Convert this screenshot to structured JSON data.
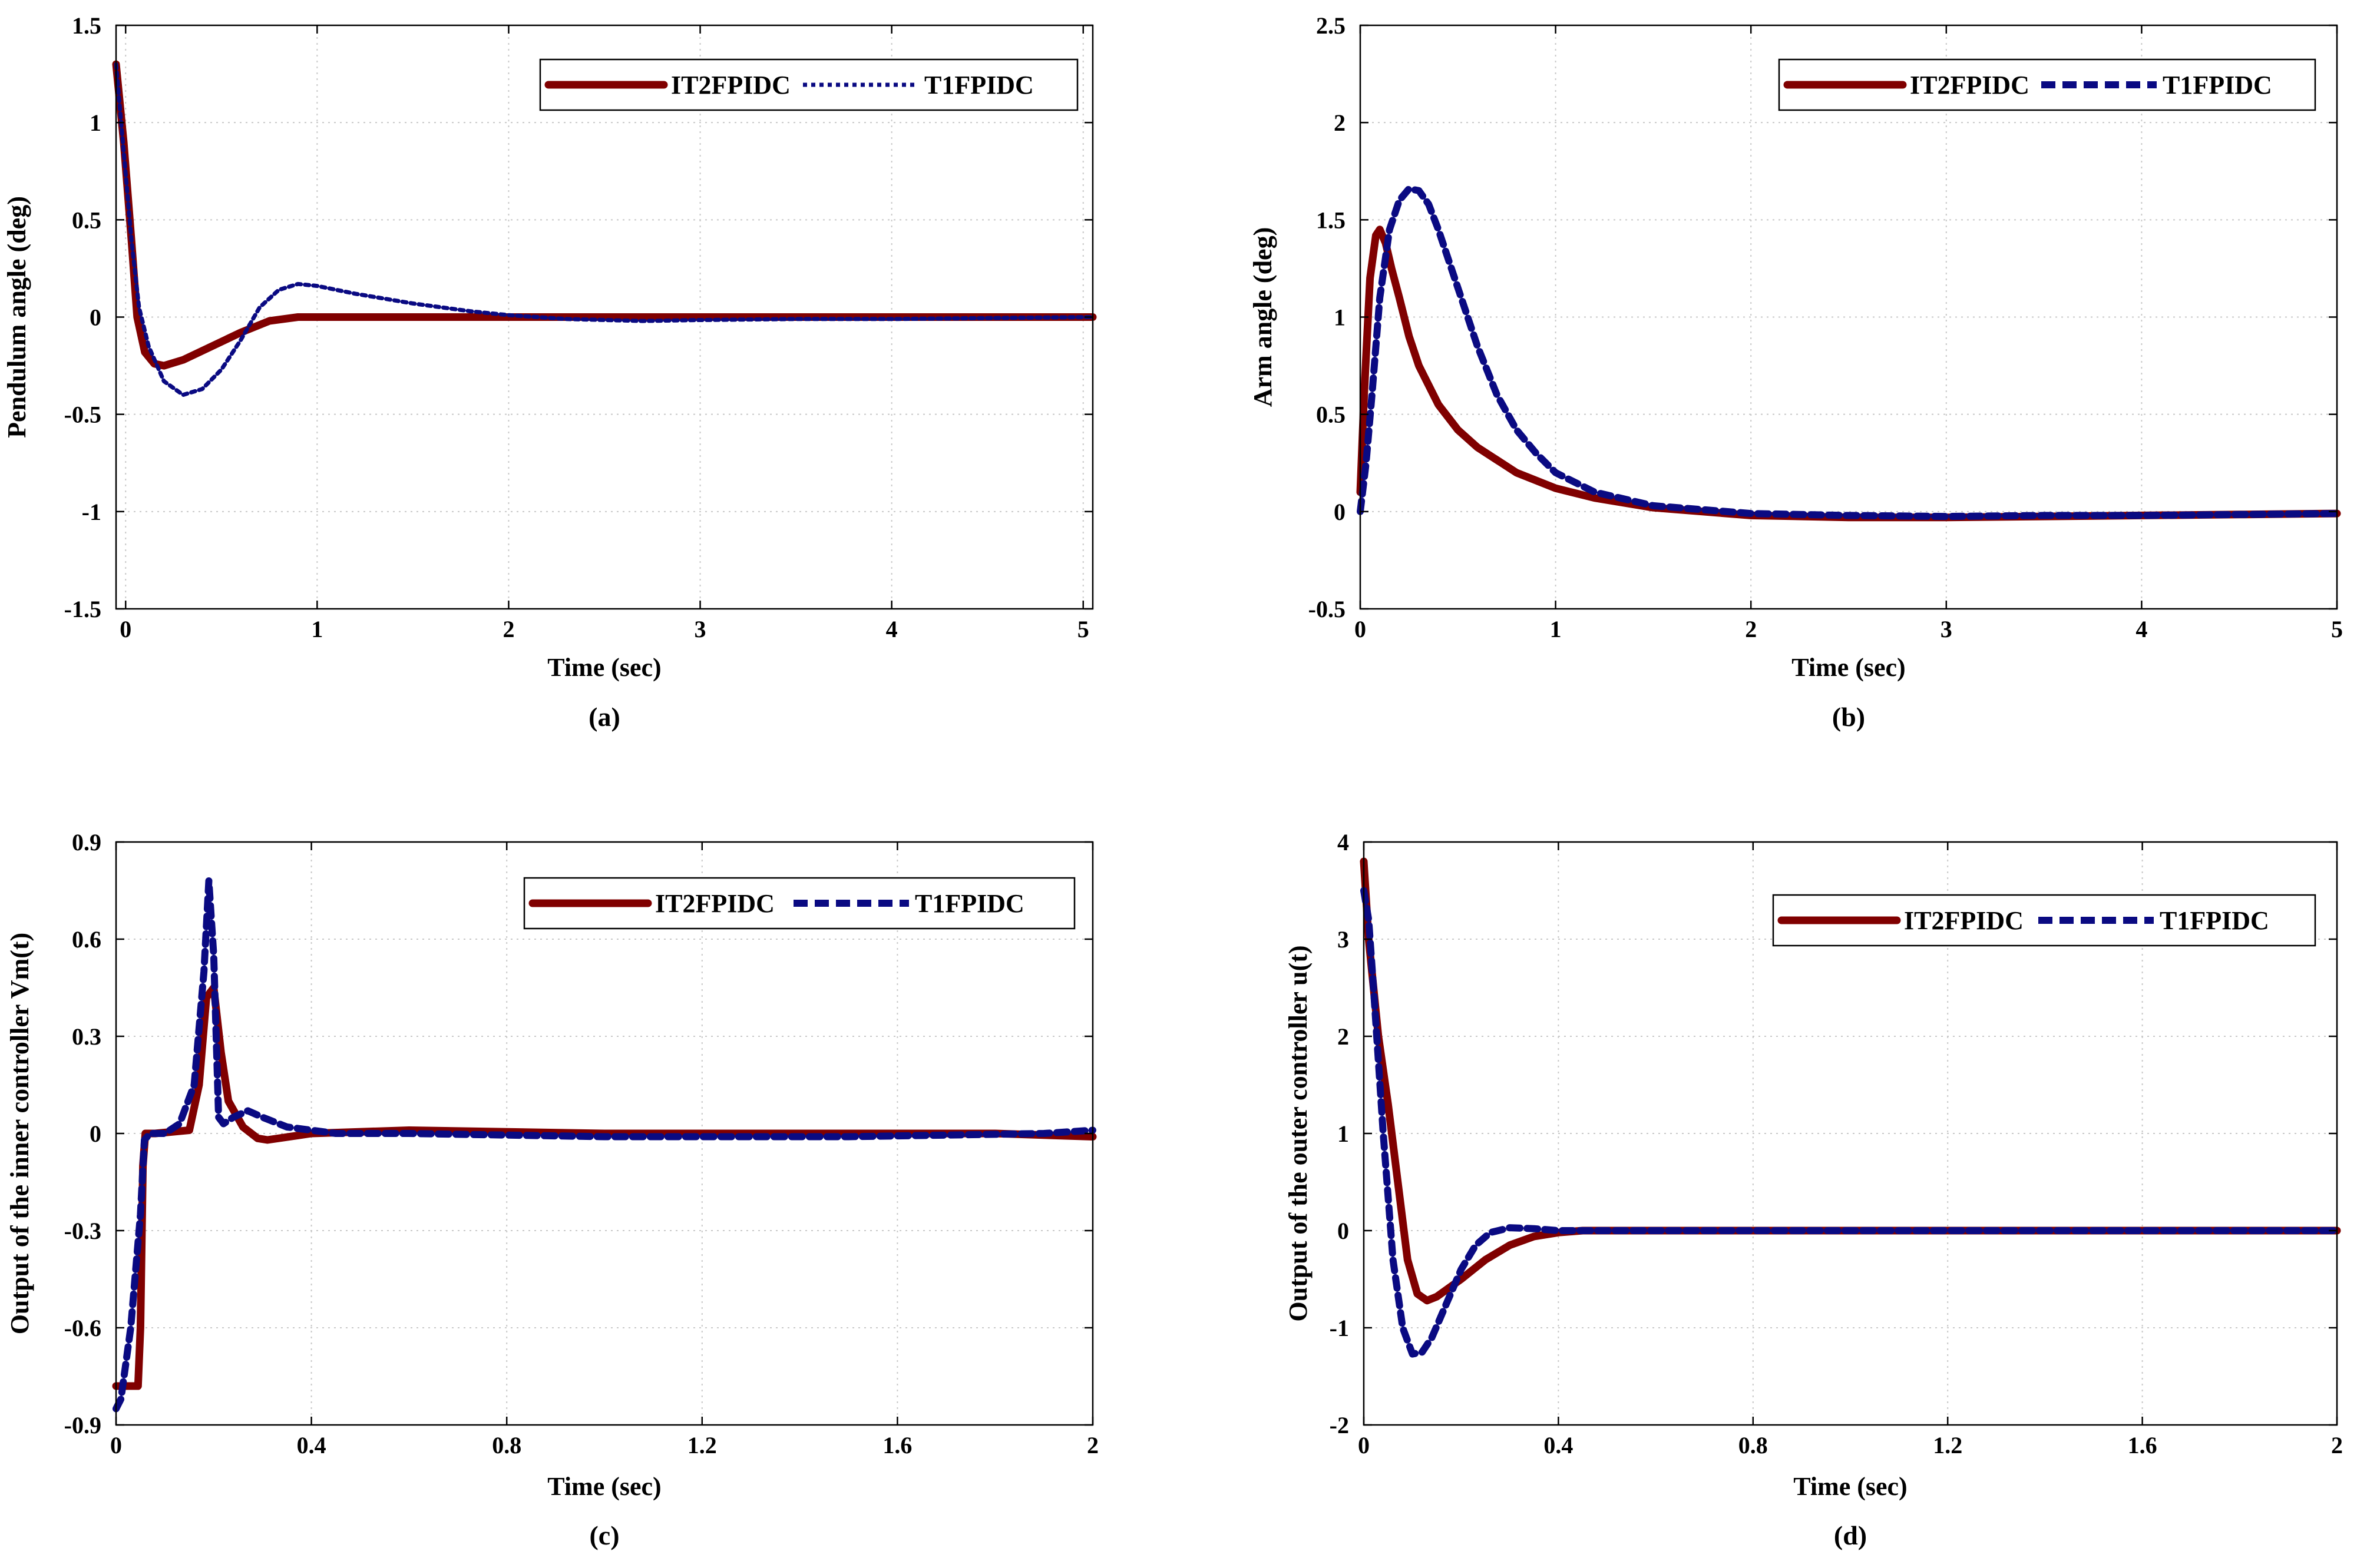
{
  "colors": {
    "it2": "#800000",
    "t1": "#0a0a82",
    "axis": "#000000",
    "grid": "#c8c8c8"
  },
  "chart_data": [
    {
      "id": "a",
      "type": "line",
      "panel_label": "(a)",
      "xlabel": "Time (sec)",
      "ylabel": "Pendulum angle (deg)",
      "xlim": [
        -0.05,
        5.05
      ],
      "ylim": [
        -1.5,
        1.5
      ],
      "xticks": [
        0,
        1,
        2,
        3,
        4,
        5
      ],
      "xtick_labels": [
        "0",
        "1",
        "2",
        "3",
        "4",
        "5"
      ],
      "yticks": [
        -1.5,
        -1,
        -0.5,
        0,
        0.5,
        1,
        1.5
      ],
      "ytick_labels": [
        "-1.5",
        "-1",
        "-0.5",
        "0",
        "0.5",
        "1",
        "1.5"
      ],
      "legend": {
        "position": "top-right",
        "entries": [
          "IT2FPIDC",
          "T1FPIDC"
        ],
        "t1_style": "dotted"
      },
      "series": [
        {
          "name": "IT2FPIDC",
          "style": "solid",
          "x": [
            -0.05,
            -0.01,
            0.03,
            0.06,
            0.1,
            0.15,
            0.2,
            0.3,
            0.45,
            0.6,
            0.75,
            0.9,
            1.0,
            1.5,
            2.0,
            3.0,
            4.0,
            5.05
          ],
          "y": [
            1.3,
            0.9,
            0.4,
            0.0,
            -0.18,
            -0.24,
            -0.25,
            -0.22,
            -0.15,
            -0.08,
            -0.02,
            0.0,
            0.0,
            0.0,
            0.0,
            0.0,
            0.0,
            0.0
          ]
        },
        {
          "name": "T1FPIDC",
          "style": "dotted",
          "x": [
            -0.05,
            -0.01,
            0.03,
            0.07,
            0.12,
            0.2,
            0.3,
            0.4,
            0.5,
            0.6,
            0.7,
            0.8,
            0.9,
            1.0,
            1.2,
            1.5,
            1.8,
            2.0,
            2.3,
            2.7,
            3.0,
            3.5,
            4.0,
            4.5,
            5.05
          ],
          "y": [
            1.3,
            0.85,
            0.4,
            0.05,
            -0.15,
            -0.33,
            -0.4,
            -0.37,
            -0.27,
            -0.12,
            0.05,
            0.14,
            0.17,
            0.16,
            0.12,
            0.07,
            0.03,
            0.01,
            -0.01,
            -0.02,
            -0.015,
            -0.01,
            -0.01,
            -0.005,
            0.0
          ]
        }
      ]
    },
    {
      "id": "b",
      "type": "line",
      "panel_label": "(b)",
      "xlabel": "Time (sec)",
      "ylabel": "Arm angle (deg)",
      "xlim": [
        0,
        5
      ],
      "ylim": [
        -0.5,
        2.5
      ],
      "xticks": [
        0,
        1,
        2,
        3,
        4,
        5
      ],
      "xtick_labels": [
        "0",
        "1",
        "2",
        "3",
        "4",
        "5"
      ],
      "yticks": [
        -0.5,
        0,
        0.5,
        1,
        1.5,
        2,
        2.5
      ],
      "ytick_labels": [
        "-0.5",
        "0",
        "0.5",
        "1",
        "1.5",
        "2",
        "2.5"
      ],
      "legend": {
        "position": "top-right",
        "entries": [
          "IT2FPIDC",
          "T1FPIDC"
        ],
        "t1_style": "dashed"
      },
      "series": [
        {
          "name": "IT2FPIDC",
          "style": "solid",
          "x": [
            0.0,
            0.02,
            0.05,
            0.08,
            0.1,
            0.13,
            0.16,
            0.2,
            0.25,
            0.3,
            0.4,
            0.5,
            0.6,
            0.8,
            1.0,
            1.2,
            1.5,
            2.0,
            2.5,
            3.0,
            3.5,
            4.0,
            4.5,
            5.0
          ],
          "y": [
            0.1,
            0.6,
            1.2,
            1.42,
            1.45,
            1.38,
            1.25,
            1.1,
            0.9,
            0.75,
            0.55,
            0.42,
            0.33,
            0.2,
            0.12,
            0.07,
            0.02,
            -0.02,
            -0.03,
            -0.03,
            -0.025,
            -0.02,
            -0.015,
            -0.01
          ]
        },
        {
          "name": "T1FPIDC",
          "style": "dashed",
          "x": [
            0.0,
            0.03,
            0.06,
            0.1,
            0.15,
            0.2,
            0.25,
            0.3,
            0.35,
            0.4,
            0.5,
            0.6,
            0.7,
            0.8,
            0.9,
            1.0,
            1.2,
            1.5,
            2.0,
            2.5,
            3.0,
            3.5,
            4.0,
            4.5,
            5.0
          ],
          "y": [
            0.0,
            0.25,
            0.6,
            1.1,
            1.45,
            1.6,
            1.66,
            1.65,
            1.58,
            1.45,
            1.15,
            0.85,
            0.6,
            0.42,
            0.3,
            0.2,
            0.1,
            0.03,
            -0.01,
            -0.02,
            -0.025,
            -0.02,
            -0.02,
            -0.015,
            -0.01
          ]
        }
      ]
    },
    {
      "id": "c",
      "type": "line",
      "panel_label": "(c)",
      "xlabel": "Time (sec)",
      "ylabel": "Output of the inner controller Vm(t)",
      "xlim": [
        0,
        2
      ],
      "ylim": [
        -0.9,
        0.9
      ],
      "xticks": [
        0,
        0.4,
        0.8,
        1.2,
        1.6,
        2
      ],
      "xtick_labels": [
        "0",
        "0.4",
        "0.8",
        "1.2",
        "1.6",
        "2"
      ],
      "yticks": [
        -0.9,
        -0.6,
        -0.3,
        0,
        0.3,
        0.6,
        0.9
      ],
      "ytick_labels": [
        "-0.9",
        "-0.6",
        "-0.3",
        "0",
        "0.3",
        "0.6",
        "0.9"
      ],
      "legend": {
        "position": "top-right",
        "entries": [
          "IT2FPIDC",
          "T1FPIDC"
        ],
        "t1_style": "dashed"
      },
      "series": [
        {
          "name": "IT2FPIDC",
          "style": "solid",
          "x": [
            0.0,
            0.045,
            0.05,
            0.055,
            0.06,
            0.08,
            0.15,
            0.17,
            0.185,
            0.2,
            0.215,
            0.23,
            0.26,
            0.29,
            0.31,
            0.4,
            0.6,
            1.0,
            1.4,
            1.8,
            2.0
          ],
          "y": [
            -0.78,
            -0.78,
            -0.6,
            -0.1,
            0.0,
            0.0,
            0.01,
            0.15,
            0.42,
            0.45,
            0.25,
            0.1,
            0.02,
            -0.015,
            -0.02,
            0.0,
            0.01,
            0.0,
            0.0,
            0.0,
            -0.01
          ]
        },
        {
          "name": "T1FPIDC",
          "style": "dashed",
          "x": [
            0.0,
            0.01,
            0.03,
            0.05,
            0.058,
            0.07,
            0.1,
            0.13,
            0.16,
            0.18,
            0.19,
            0.2,
            0.21,
            0.22,
            0.24,
            0.27,
            0.3,
            0.35,
            0.45,
            0.6,
            1.0,
            1.5,
            1.9,
            2.0
          ],
          "y": [
            -0.85,
            -0.82,
            -0.6,
            -0.25,
            -0.02,
            0.0,
            0.0,
            0.03,
            0.15,
            0.5,
            0.78,
            0.55,
            0.05,
            0.03,
            0.05,
            0.07,
            0.05,
            0.02,
            0.0,
            0.0,
            -0.01,
            -0.01,
            0.0,
            0.01
          ]
        }
      ]
    },
    {
      "id": "d",
      "type": "line",
      "panel_label": "(d)",
      "xlabel": "Time (sec)",
      "ylabel": "Output of the outer controller u(t)",
      "xlim": [
        0,
        2
      ],
      "ylim": [
        -2,
        4
      ],
      "xticks": [
        0,
        0.4,
        0.8,
        1.2,
        1.6,
        2
      ],
      "xtick_labels": [
        "0",
        "0.4",
        "0.8",
        "1.2",
        "1.6",
        "2"
      ],
      "yticks": [
        -2,
        -1,
        0,
        1,
        2,
        3,
        4
      ],
      "ytick_labels": [
        "-2",
        "-1",
        "0",
        "1",
        "2",
        "3",
        "4"
      ],
      "legend": {
        "position": "top-right",
        "entries": [
          "IT2FPIDC",
          "T1FPIDC"
        ],
        "t1_style": "dashed"
      },
      "series": [
        {
          "name": "IT2FPIDC",
          "style": "solid",
          "x": [
            0.0,
            0.01,
            0.03,
            0.05,
            0.07,
            0.09,
            0.11,
            0.13,
            0.15,
            0.2,
            0.25,
            0.3,
            0.35,
            0.4,
            0.45,
            0.6,
            1.0,
            1.5,
            2.0
          ],
          "y": [
            3.8,
            3.0,
            2.0,
            1.3,
            0.5,
            -0.3,
            -0.65,
            -0.72,
            -0.68,
            -0.5,
            -0.3,
            -0.15,
            -0.06,
            -0.02,
            0.0,
            0.0,
            0.0,
            0.0,
            0.0
          ]
        },
        {
          "name": "T1FPIDC",
          "style": "dashed",
          "x": [
            0.0,
            0.01,
            0.02,
            0.04,
            0.06,
            0.08,
            0.1,
            0.12,
            0.14,
            0.17,
            0.2,
            0.23,
            0.26,
            0.3,
            0.35,
            0.4,
            0.6,
            1.0,
            1.5,
            2.0
          ],
          "y": [
            3.5,
            3.2,
            2.5,
            1.0,
            -0.3,
            -1.0,
            -1.27,
            -1.25,
            -1.1,
            -0.75,
            -0.4,
            -0.15,
            -0.02,
            0.03,
            0.02,
            0.0,
            0.0,
            0.0,
            0.0,
            0.0
          ]
        }
      ]
    }
  ]
}
